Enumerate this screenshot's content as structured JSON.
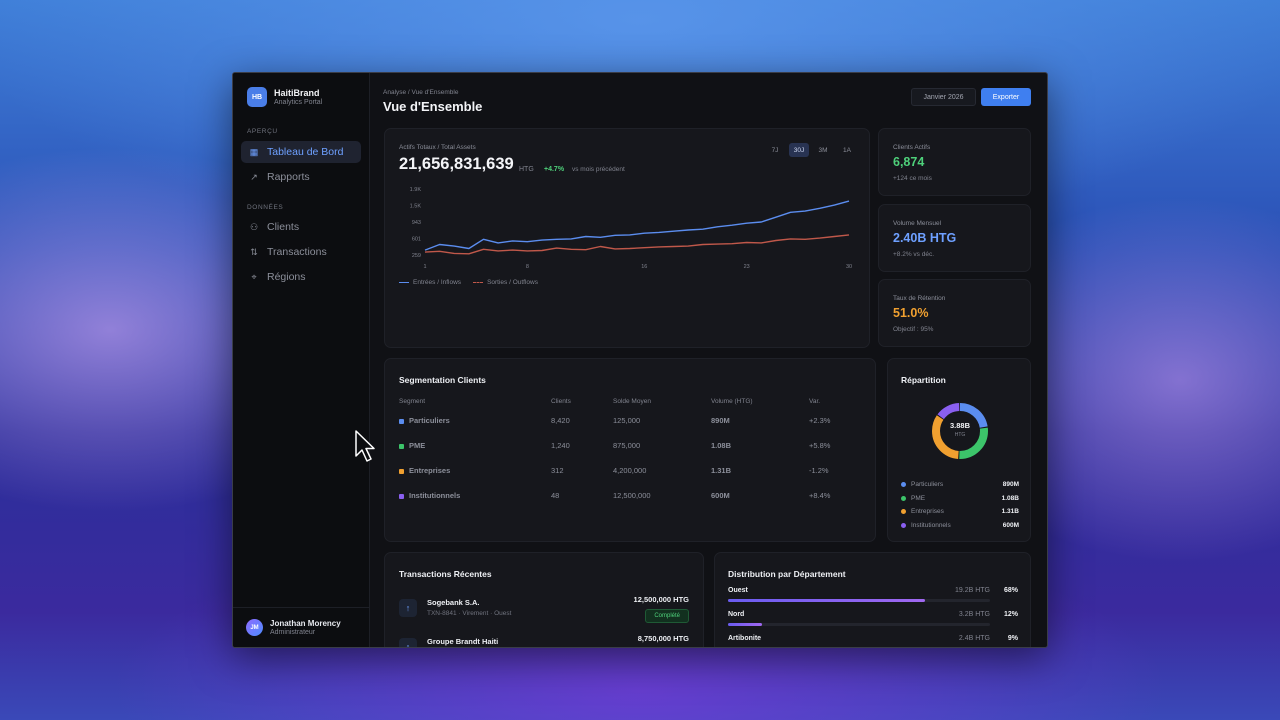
{
  "brand": {
    "logo": "HB",
    "name": "HaitiBrand",
    "subtitle": "Analytics Portal"
  },
  "sidebar": {
    "sections": [
      {
        "title": "APERÇU",
        "items": [
          {
            "label": "Tableau de Bord",
            "icon": "grid-icon",
            "active": true
          },
          {
            "label": "Rapports",
            "icon": "trend-icon",
            "active": false
          }
        ]
      },
      {
        "title": "DONNÉES",
        "items": [
          {
            "label": "Clients",
            "icon": "users-icon",
            "active": false
          },
          {
            "label": "Transactions",
            "icon": "swap-icon",
            "active": false
          },
          {
            "label": "Régions",
            "icon": "map-icon",
            "active": false
          }
        ]
      }
    ]
  },
  "user": {
    "initials": "JM",
    "name": "Jonathan Morency",
    "role": "Administrateur"
  },
  "header": {
    "breadcrumb": "Analyse / Vue d'Ensemble",
    "title": "Vue d'Ensemble",
    "period": "Janvier 2026",
    "export_label": "Exporter"
  },
  "assets": {
    "label": "Actifs Totaux / Total Assets",
    "value": "21,656,831,639",
    "currency": "HTG",
    "change": "+4.7%",
    "change_note": "vs mois précédent",
    "ranges": [
      "7J",
      "30J",
      "3M",
      "1A"
    ],
    "active_range": 1
  },
  "chart_data": {
    "type": "line",
    "x": [
      1,
      2,
      3,
      4,
      5,
      6,
      7,
      8,
      9,
      10,
      11,
      12,
      13,
      14,
      15,
      16,
      17,
      18,
      19,
      20,
      21,
      22,
      23,
      24,
      25,
      26,
      27,
      28,
      29,
      30
    ],
    "x_ticks": [
      "1",
      "8",
      "16",
      "23",
      "30"
    ],
    "y_ticks": [
      "1.9K",
      "1.5K",
      "943",
      "601",
      "259"
    ],
    "ylim": [
      259,
      1900
    ],
    "series": [
      {
        "name": "Entrées / Inflows",
        "color": "#5b8def",
        "values": [
          380,
          520,
          480,
          420,
          650,
          560,
          610,
          590,
          630,
          650,
          660,
          720,
          700,
          750,
          760,
          800,
          820,
          850,
          880,
          900,
          960,
          1000,
          1050,
          1080,
          1200,
          1320,
          1350,
          1420,
          1500,
          1600
        ]
      },
      {
        "name": "Sorties / Outflows",
        "color": "#c0584a",
        "values": [
          330,
          350,
          300,
          290,
          400,
          360,
          380,
          360,
          370,
          430,
          400,
          390,
          470,
          410,
          420,
          440,
          460,
          470,
          480,
          520,
          530,
          540,
          570,
          560,
          620,
          660,
          650,
          680,
          720,
          760
        ]
      }
    ]
  },
  "kpis": [
    {
      "label": "Clients Actifs",
      "value": "6,874",
      "sub": "+124 ce mois",
      "color": "#4ed07a"
    },
    {
      "label": "Volume Mensuel",
      "value": "2.40B HTG",
      "sub": "+8.2% vs déc.",
      "color": "#6ea0ff"
    },
    {
      "label": "Taux de Rétention",
      "value": "51.0%",
      "sub": "Objectif : 95%",
      "color": "#f0a030"
    }
  ],
  "segmentation": {
    "title": "Segmentation Clients",
    "columns": [
      "Segment",
      "Clients",
      "Solde Moyen",
      "Volume (HTG)",
      "Var."
    ],
    "rows": [
      {
        "segment": "Particuliers",
        "clients": "8,420",
        "solde": "125,000",
        "volume": "890M",
        "var": "+2.3%",
        "positive": true,
        "color": "#5b8def"
      },
      {
        "segment": "PME",
        "clients": "1,240",
        "solde": "875,000",
        "volume": "1.08B",
        "var": "+5.8%",
        "positive": true,
        "color": "#3cc46a"
      },
      {
        "segment": "Entreprises",
        "clients": "312",
        "solde": "4,200,000",
        "volume": "1.31B",
        "var": "-1.2%",
        "positive": false,
        "color": "#f0a030"
      },
      {
        "segment": "Institutionnels",
        "clients": "48",
        "solde": "12,500,000",
        "volume": "600M",
        "var": "+8.4%",
        "positive": true,
        "color": "#8a5ff0"
      }
    ]
  },
  "repartition": {
    "title": "Répartition",
    "total": "3.88B",
    "currency": "HTG",
    "items": [
      {
        "name": "Particuliers",
        "value": "890M",
        "share": 0.23,
        "color": "#5b8def"
      },
      {
        "name": "PME",
        "value": "1.08B",
        "share": 0.28,
        "color": "#3cc46a"
      },
      {
        "name": "Entreprises",
        "value": "1.31B",
        "share": 0.34,
        "color": "#f0a030"
      },
      {
        "name": "Institutionnels",
        "value": "600M",
        "share": 0.15,
        "color": "#8a5ff0"
      }
    ]
  },
  "transactions": {
    "title": "Transactions Récentes",
    "items": [
      {
        "name": "Sogebank S.A.",
        "meta": "TXN-8841 · Virement · Ouest",
        "amount": "12,500,000 HTG",
        "status": "Complété"
      },
      {
        "name": "Groupe Brandt Haiti",
        "meta": "",
        "amount": "8,750,000 HTG",
        "status": ""
      }
    ]
  },
  "distribution": {
    "title": "Distribution par Département",
    "items": [
      {
        "name": "Ouest",
        "amount": "19.2B HTG",
        "pct": "68%",
        "fill": 0.75
      },
      {
        "name": "Nord",
        "amount": "3.2B HTG",
        "pct": "12%",
        "fill": 0.13
      },
      {
        "name": "Artibonite",
        "amount": "2.4B HTG",
        "pct": "9%",
        "fill": 0.1
      }
    ]
  }
}
